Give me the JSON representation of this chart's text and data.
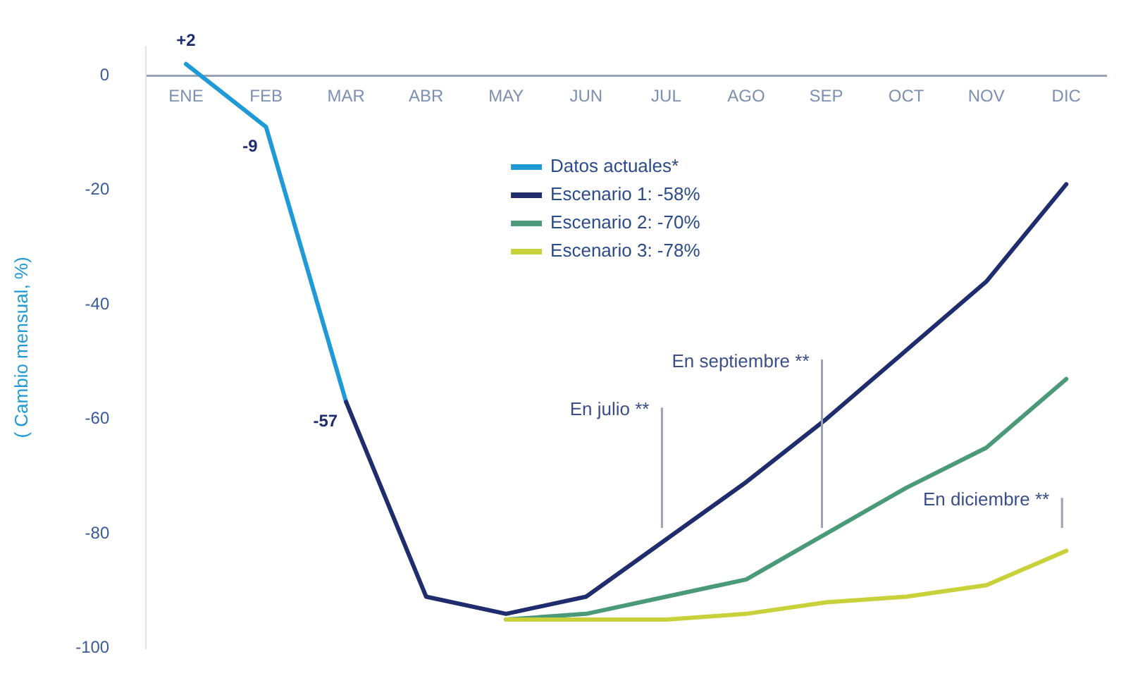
{
  "chart_data": {
    "type": "line",
    "ylabel": "( Cambio mensual, %)",
    "categories": [
      "ENE",
      "FEB",
      "MAR",
      "ABR",
      "MAY",
      "JUN",
      "JUL",
      "AGO",
      "SEP",
      "OCT",
      "NOV",
      "DIC"
    ],
    "series": [
      {
        "name": "Datos actuales*",
        "color": "#1f9ad6",
        "values": [
          2,
          -9,
          -57,
          null,
          null,
          null,
          null,
          null,
          null,
          null,
          null,
          null
        ],
        "value_labels": [
          "+2",
          "-9",
          "-57",
          null,
          null,
          null,
          null,
          null,
          null,
          null,
          null,
          null
        ]
      },
      {
        "name": "Escenario 1: -58%",
        "color": "#1f2d6e",
        "values": [
          null,
          null,
          -57,
          -91,
          -94,
          -91,
          -81,
          -71,
          -60,
          -48,
          -36,
          -19
        ]
      },
      {
        "name": "Escenario 2: -70%",
        "color": "#4a9a7a",
        "values": [
          null,
          null,
          null,
          null,
          -95,
          -94,
          -91,
          -88,
          -80,
          -72,
          -65,
          -53
        ]
      },
      {
        "name": "Escenario 3: -78%",
        "color": "#c9d13a",
        "values": [
          null,
          null,
          null,
          null,
          -95,
          -95,
          -95,
          -94,
          -92,
          -91,
          -89,
          -83
        ]
      }
    ],
    "ylim": [
      -100,
      5
    ],
    "yticks": [
      0,
      -20,
      -40,
      -60,
      -80,
      -100
    ],
    "ref_lines": [
      {
        "axis": "x",
        "value": "JUL",
        "label": "En julio **",
        "color": "#9aa3b5"
      },
      {
        "axis": "x",
        "value": "SEP",
        "label": "En septiembre **",
        "color": "#9aa3b5"
      },
      {
        "axis": "x",
        "value": "DIC",
        "label": "En diciembre **",
        "color": "#9aa3b5"
      }
    ],
    "grid": false,
    "legend": "top",
    "marker": "none",
    "line_style": "solid"
  }
}
